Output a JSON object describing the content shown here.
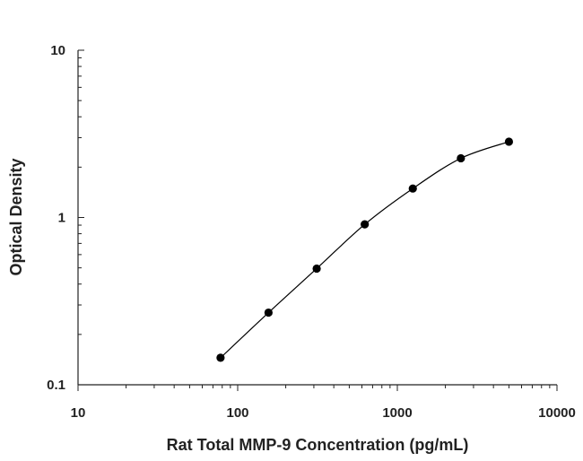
{
  "chart_data": {
    "type": "line",
    "title": "",
    "xlabel": "Rat Total MMP-9 Concentration (pg/mL)",
    "ylabel": "Optical Density",
    "xscale": "log",
    "yscale": "log",
    "xlim": [
      10,
      10000
    ],
    "ylim": [
      0.1,
      10
    ],
    "x_ticks": [
      10,
      100,
      1000,
      10000
    ],
    "x_tick_labels": [
      "10",
      "100",
      "1000",
      "10000"
    ],
    "y_ticks": [
      0.1,
      1,
      10
    ],
    "y_tick_labels": [
      "0.1",
      "1",
      "10"
    ],
    "grid": false,
    "legend": false,
    "marker_color": "#000000",
    "line_color": "#000000",
    "series": [
      {
        "x": [
          78.1,
          156,
          312.5,
          625,
          1250,
          2500,
          5000
        ],
        "y": [
          0.145,
          0.27,
          0.495,
          0.91,
          1.49,
          2.26,
          2.84
        ]
      }
    ]
  }
}
